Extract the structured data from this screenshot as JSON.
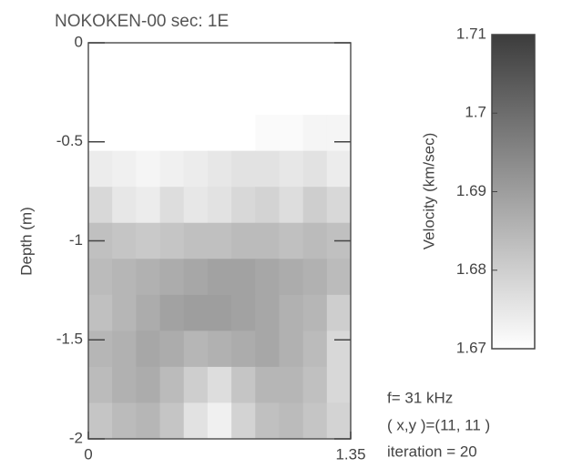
{
  "chart_data": {
    "type": "heatmap",
    "title": "NOKOKEN-00 sec: 1E",
    "ylabel": "Depth (m)",
    "xlim": [
      0,
      1.35
    ],
    "xticks": [
      0,
      1.35
    ],
    "ylim": [
      -2,
      0
    ],
    "yticks": [
      0,
      -0.5,
      -1,
      -1.5,
      -2
    ],
    "colormap": [
      "#ffffff",
      "#3c3c3c"
    ],
    "colorbar": {
      "label": "Velocity (km/sec)",
      "lim": [
        1.67,
        1.71
      ],
      "ticks": [
        1.71,
        1.7,
        1.69,
        1.68,
        1.67
      ]
    },
    "values": [
      [
        1.67,
        1.67,
        1.67,
        1.67,
        1.67,
        1.67,
        1.67,
        1.67,
        1.67,
        1.67,
        1.67
      ],
      [
        1.67,
        1.67,
        1.67,
        1.67,
        1.67,
        1.67,
        1.67,
        1.67,
        1.67,
        1.67,
        1.67
      ],
      [
        1.67,
        1.67,
        1.67,
        1.67,
        1.67,
        1.67,
        1.67,
        1.671,
        1.671,
        1.672,
        1.672
      ],
      [
        1.674,
        1.673,
        1.672,
        1.673,
        1.674,
        1.675,
        1.676,
        1.676,
        1.675,
        1.676,
        1.674
      ],
      [
        1.678,
        1.675,
        1.674,
        1.677,
        1.675,
        1.676,
        1.678,
        1.679,
        1.677,
        1.68,
        1.678
      ],
      [
        1.683,
        1.682,
        1.681,
        1.682,
        1.683,
        1.683,
        1.684,
        1.684,
        1.683,
        1.684,
        1.683
      ],
      [
        1.684,
        1.685,
        1.686,
        1.687,
        1.688,
        1.689,
        1.689,
        1.688,
        1.687,
        1.686,
        1.684
      ],
      [
        1.683,
        1.685,
        1.687,
        1.689,
        1.69,
        1.69,
        1.689,
        1.688,
        1.686,
        1.685,
        1.68
      ],
      [
        1.685,
        1.686,
        1.688,
        1.687,
        1.685,
        1.686,
        1.687,
        1.688,
        1.686,
        1.684,
        1.678
      ],
      [
        1.684,
        1.686,
        1.687,
        1.684,
        1.68,
        1.677,
        1.682,
        1.685,
        1.685,
        1.683,
        1.678
      ],
      [
        1.682,
        1.684,
        1.685,
        1.682,
        1.676,
        1.673,
        1.679,
        1.683,
        1.684,
        1.682,
        1.679
      ]
    ],
    "annotations": [
      "f=   31 kHz",
      "( x,y )=(11, 11 )",
      "iteration = 20"
    ]
  }
}
